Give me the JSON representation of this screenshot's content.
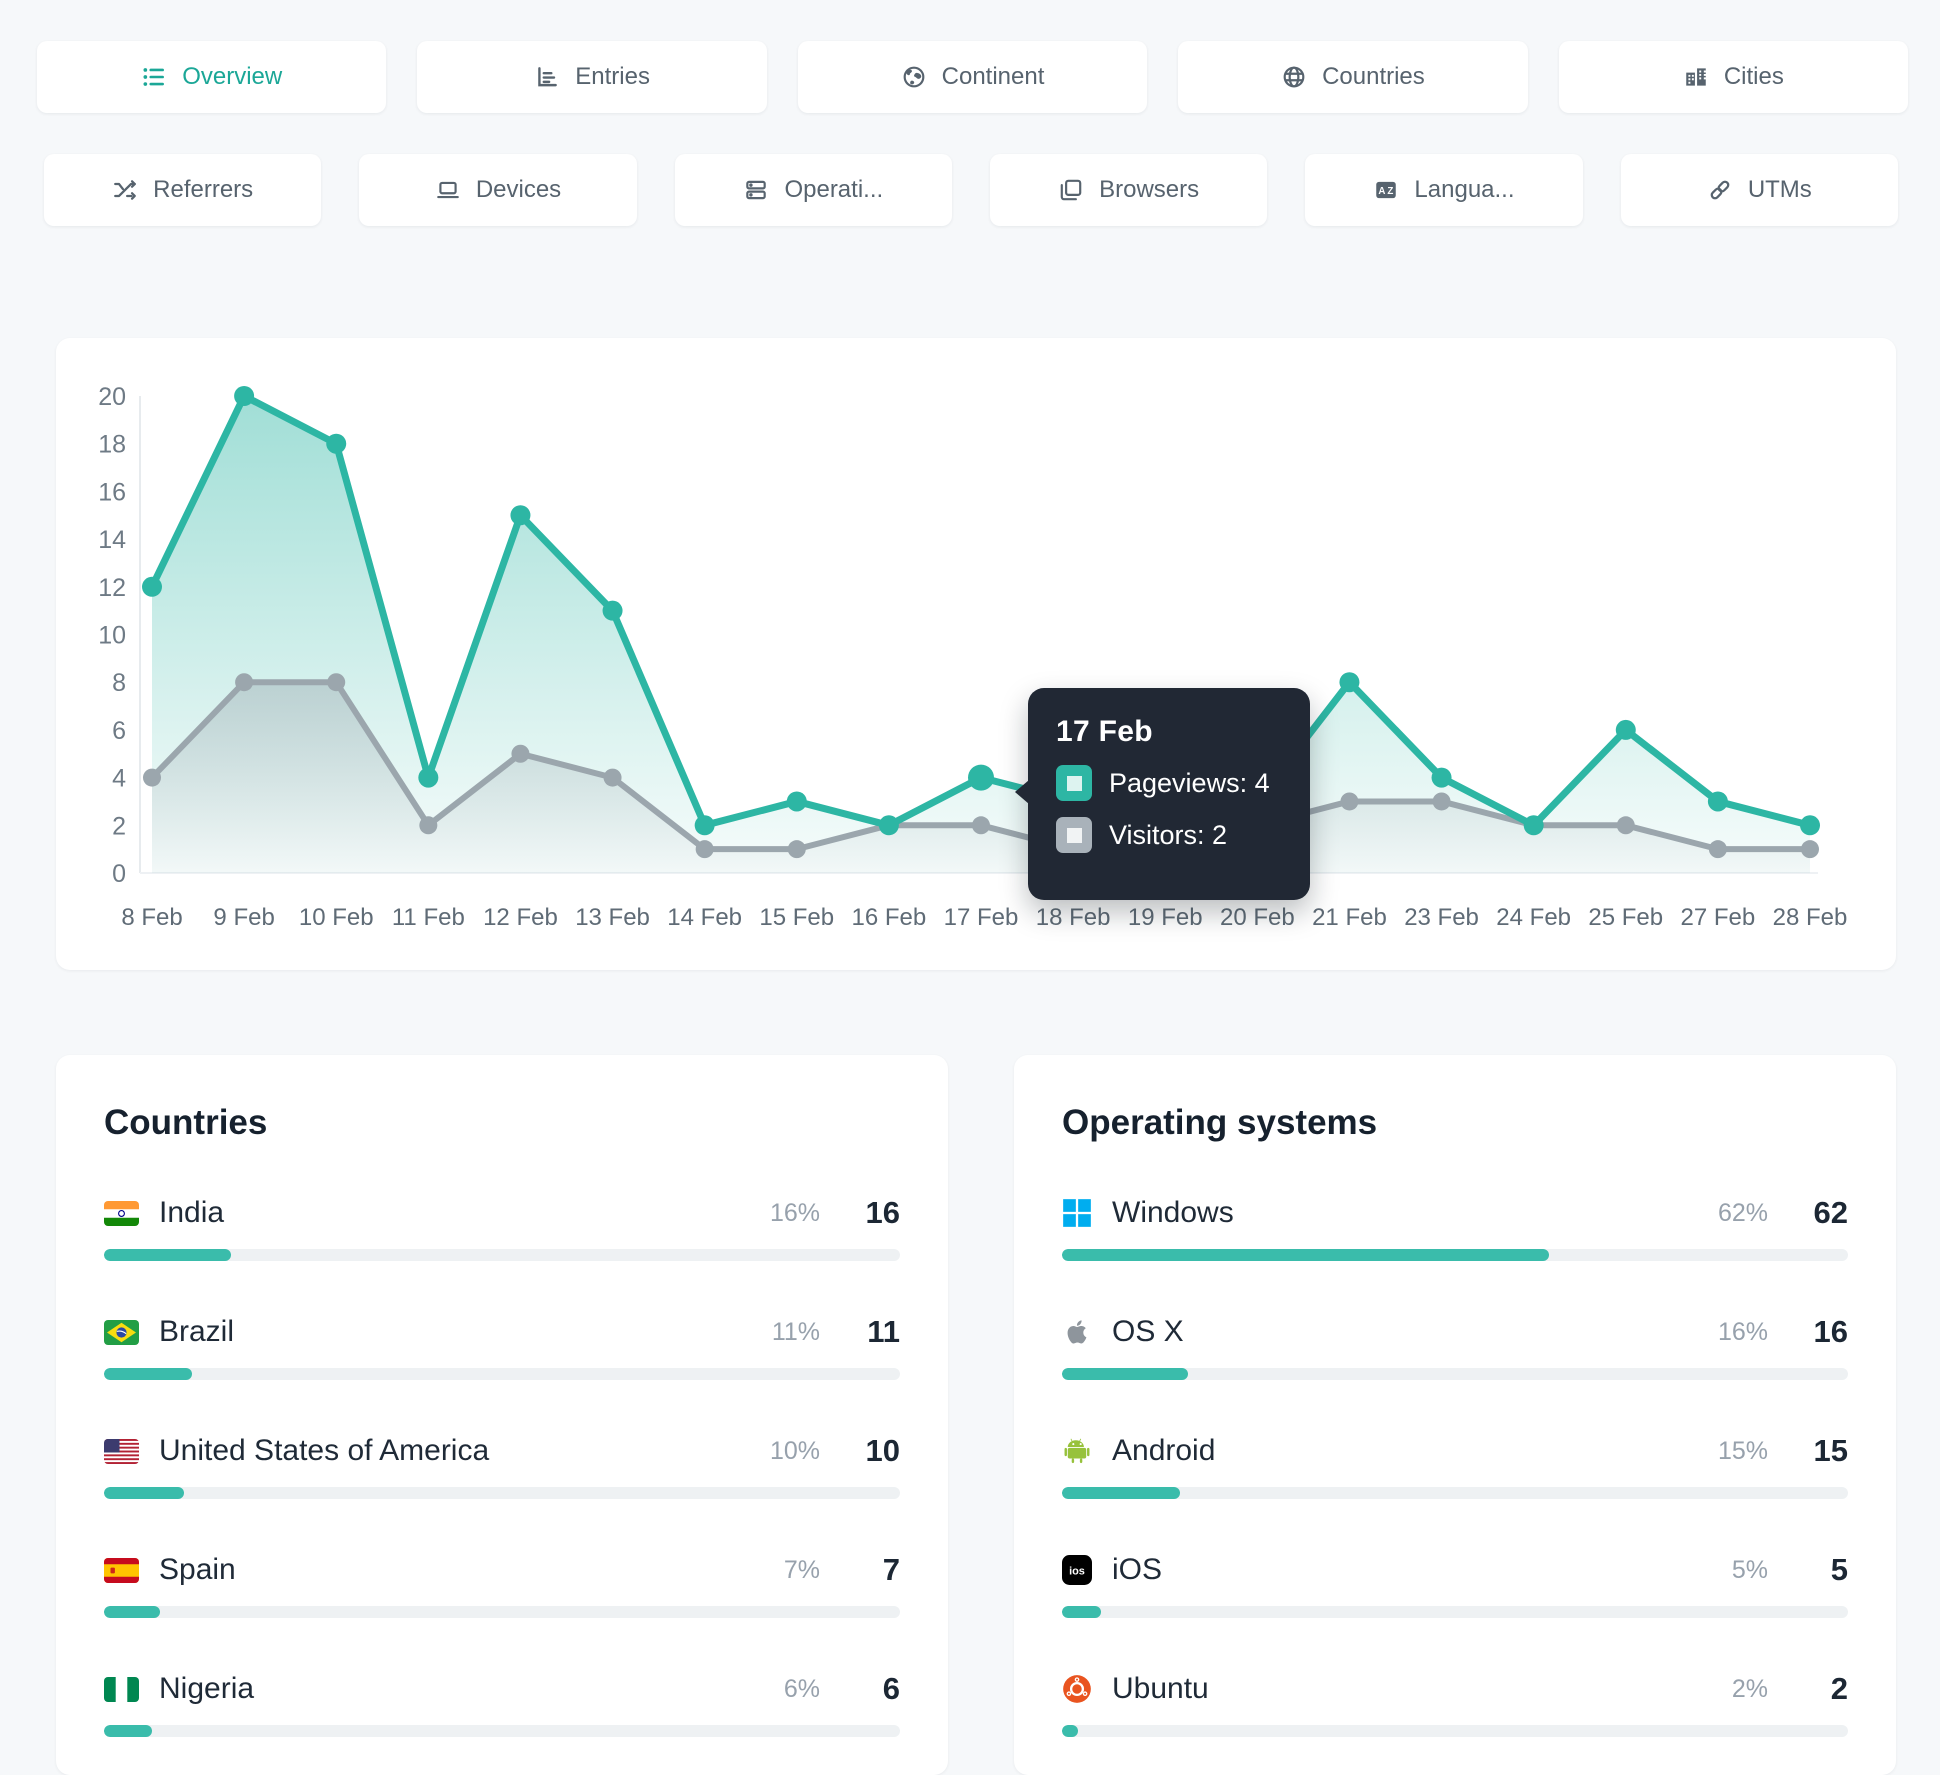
{
  "accent_color": "#2db6a4",
  "primary_tabs": [
    {
      "label": "Overview",
      "icon": "overview-list-icon",
      "active": true
    },
    {
      "label": "Entries",
      "icon": "entries-chart-icon",
      "active": false
    },
    {
      "label": "Continent",
      "icon": "continent-globe-icon",
      "active": false
    },
    {
      "label": "Countries",
      "icon": "countries-globe-icon",
      "active": false
    },
    {
      "label": "Cities",
      "icon": "cities-building-icon",
      "active": false
    }
  ],
  "secondary_tabs": [
    {
      "label": "Referrers",
      "icon": "shuffle-icon",
      "active": false
    },
    {
      "label": "Devices",
      "icon": "laptop-icon",
      "active": false
    },
    {
      "label": "Operati...",
      "icon": "server-icon",
      "active": false
    },
    {
      "label": "Browsers",
      "icon": "browser-icon",
      "active": false
    },
    {
      "label": "Langua...",
      "icon": "translate-icon",
      "active": false
    },
    {
      "label": "UTMs",
      "icon": "link-icon",
      "active": false
    }
  ],
  "chart_data": {
    "type": "area",
    "categories": [
      "8 Feb",
      "9 Feb",
      "10 Feb",
      "11 Feb",
      "12 Feb",
      "13 Feb",
      "14 Feb",
      "15 Feb",
      "16 Feb",
      "17 Feb",
      "18 Feb",
      "19 Feb",
      "20 Feb",
      "21 Feb",
      "23 Feb",
      "24 Feb",
      "25 Feb",
      "27 Feb",
      "28 Feb"
    ],
    "series": [
      {
        "name": "Pageviews",
        "color": "#2db6a4",
        "values": [
          12,
          20,
          18,
          4,
          15,
          11,
          2,
          3,
          2,
          4,
          3,
          2,
          3,
          8,
          4,
          2,
          6,
          3,
          2
        ]
      },
      {
        "name": "Visitors",
        "color": "#9ba6ad",
        "values": [
          4,
          8,
          8,
          2,
          5,
          4,
          1,
          1,
          2,
          2,
          1,
          1,
          2,
          3,
          3,
          2,
          2,
          1,
          1
        ]
      }
    ],
    "ylim": [
      0,
      20
    ],
    "yticks": [
      0,
      2,
      4,
      6,
      8,
      10,
      12,
      14,
      16,
      18,
      20
    ],
    "grid": false,
    "legend_position": "none",
    "hover_index": 9
  },
  "tooltip": {
    "title": "17 Feb",
    "rows": [
      {
        "label": "Pageviews: 4",
        "color": "#2db6a4"
      },
      {
        "label": "Visitors: 2",
        "color": "#a9b2ba"
      }
    ]
  },
  "panels": [
    {
      "title": "Countries",
      "rows": [
        {
          "icon": "flag-india",
          "label": "India",
          "percent": "16%",
          "value": "16",
          "bar_pct": 16
        },
        {
          "icon": "flag-brazil",
          "label": "Brazil",
          "percent": "11%",
          "value": "11",
          "bar_pct": 11
        },
        {
          "icon": "flag-usa",
          "label": "United States of America",
          "percent": "10%",
          "value": "10",
          "bar_pct": 10
        },
        {
          "icon": "flag-spain",
          "label": "Spain",
          "percent": "7%",
          "value": "7",
          "bar_pct": 7
        },
        {
          "icon": "flag-nigeria",
          "label": "Nigeria",
          "percent": "6%",
          "value": "6",
          "bar_pct": 6
        }
      ]
    },
    {
      "title": "Operating systems",
      "rows": [
        {
          "icon": "windows-logo-icon",
          "label": "Windows",
          "percent": "62%",
          "value": "62",
          "bar_pct": 62
        },
        {
          "icon": "apple-logo-icon",
          "label": "OS X",
          "percent": "16%",
          "value": "16",
          "bar_pct": 16
        },
        {
          "icon": "android-logo-icon",
          "label": "Android",
          "percent": "15%",
          "value": "15",
          "bar_pct": 15
        },
        {
          "icon": "ios-logo-icon",
          "label": "iOS",
          "percent": "5%",
          "value": "5",
          "bar_pct": 5
        },
        {
          "icon": "ubuntu-logo-icon",
          "label": "Ubuntu",
          "percent": "2%",
          "value": "2",
          "bar_pct": 2
        }
      ]
    }
  ]
}
